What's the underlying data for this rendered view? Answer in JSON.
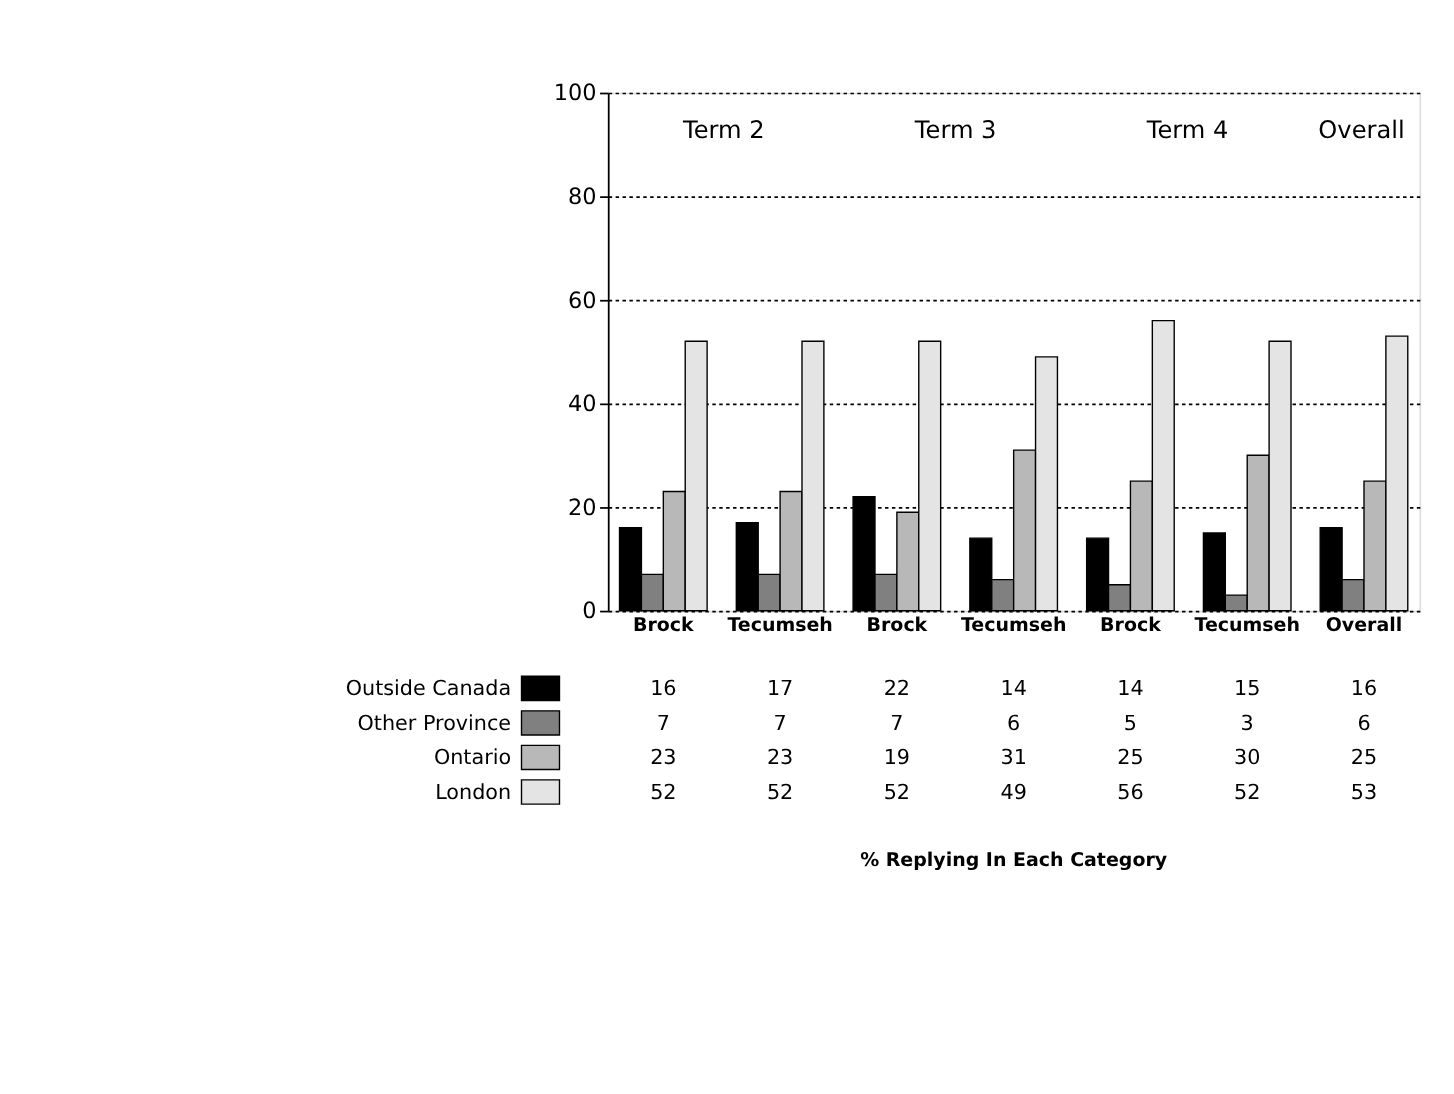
{
  "chart_data": {
    "type": "bar",
    "categories": [
      "Brock",
      "Tecumseh",
      "Brock",
      "Tecumseh",
      "Brock",
      "Tecumseh",
      "Overall"
    ],
    "series": [
      {
        "name": "Outside Canada",
        "color": "#000000",
        "values": [
          16,
          17,
          22,
          14,
          14,
          15,
          16
        ]
      },
      {
        "name": "Other Province",
        "color": "#808080",
        "values": [
          7,
          7,
          7,
          6,
          5,
          3,
          6
        ]
      },
      {
        "name": "Ontario",
        "color": "#b8b8b8",
        "values": [
          23,
          23,
          19,
          31,
          25,
          30,
          25
        ]
      },
      {
        "name": "London",
        "color": "#e4e4e4",
        "values": [
          52,
          52,
          52,
          49,
          56,
          52,
          53
        ]
      }
    ],
    "ylim": [
      0,
      100
    ],
    "yticks": [
      0,
      20,
      40,
      60,
      80,
      100
    ],
    "grid": "y",
    "data_labels": true,
    "legend": "bottom left",
    "annotations": [
      "Term 2",
      "Term 3",
      "Term 4",
      "Overall",
      "% Replying In Each Category"
    ]
  }
}
